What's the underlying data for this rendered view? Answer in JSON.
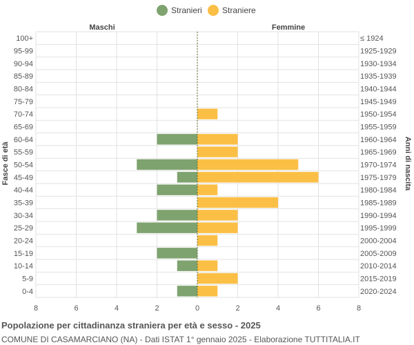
{
  "chart_data": {
    "type": "bar",
    "orientation": "horizontal-population-pyramid",
    "title": "Popolazione per cittadinanza straniera per età e sesso - 2025",
    "subtitle": "COMUNE DI CASAMARCIANO (NA) - Dati ISTAT 1° gennaio 2025 - Elaborazione TUTTITALIA.IT",
    "left_header": "Maschi",
    "right_header": "Femmine",
    "ylabel_left": "Fasce di età",
    "ylabel_right": "Anni di nascita",
    "xlim": [
      -8,
      8
    ],
    "x_ticks": [
      -8,
      -6,
      -4,
      -2,
      0,
      2,
      4,
      6,
      8
    ],
    "x_tick_labels": [
      "8",
      "6",
      "4",
      "2",
      "0",
      "2",
      "4",
      "6",
      "8"
    ],
    "grid": true,
    "legend_position": "top-center",
    "categories": [
      "100+",
      "95-99",
      "90-94",
      "85-89",
      "80-84",
      "75-79",
      "70-74",
      "65-69",
      "60-64",
      "55-59",
      "50-54",
      "45-49",
      "40-44",
      "35-39",
      "30-34",
      "25-29",
      "20-24",
      "15-19",
      "10-14",
      "5-9",
      "0-4"
    ],
    "birth_years": [
      "≤ 1924",
      "1925-1929",
      "1930-1934",
      "1935-1939",
      "1940-1944",
      "1945-1949",
      "1950-1954",
      "1955-1959",
      "1960-1964",
      "1965-1969",
      "1970-1974",
      "1975-1979",
      "1980-1984",
      "1985-1989",
      "1990-1994",
      "1995-1999",
      "2000-2004",
      "2005-2009",
      "2010-2014",
      "2015-2019",
      "2020-2024"
    ],
    "series": [
      {
        "name": "Stranieri",
        "color": "#7fa36f",
        "values": [
          0,
          0,
          0,
          0,
          0,
          0,
          0,
          0,
          2,
          0,
          3,
          1,
          2,
          0,
          2,
          3,
          0,
          2,
          1,
          0,
          1
        ]
      },
      {
        "name": "Straniere",
        "color": "#fbbf45",
        "values": [
          0,
          0,
          0,
          0,
          0,
          0,
          1,
          0,
          2,
          2,
          5,
          6,
          1,
          4,
          2,
          2,
          1,
          0,
          1,
          2,
          1
        ]
      }
    ]
  }
}
